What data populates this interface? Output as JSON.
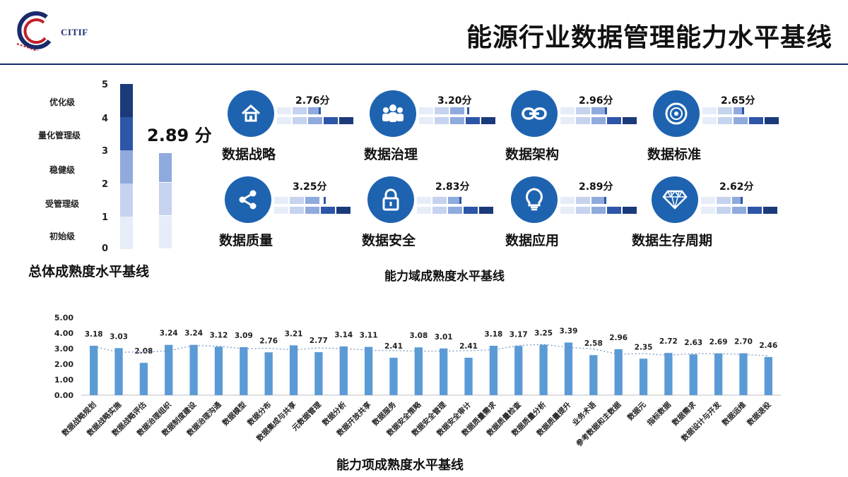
{
  "header": {
    "logo_text": "CITIF",
    "title": "能源行业数据管理能力水平基线"
  },
  "overall": {
    "levels": [
      "优化级",
      "量化管理级",
      "稳健级",
      "受管理级",
      "初始级"
    ],
    "ticks": [
      "5",
      "4",
      "3",
      "2",
      "1",
      "0"
    ],
    "score": 2.89,
    "score_label": "2.89 分",
    "caption": "总体成熟度水平基线"
  },
  "domains": {
    "items": [
      {
        "name": "数据战略",
        "score": 2.76,
        "score_label": "2.76分",
        "icon": "house-icon"
      },
      {
        "name": "数据治理",
        "score": 3.2,
        "score_label": "3.20分",
        "icon": "people-icon"
      },
      {
        "name": "数据架构",
        "score": 2.96,
        "score_label": "2.96分",
        "icon": "link-icon"
      },
      {
        "name": "数据标准",
        "score": 2.65,
        "score_label": "2.65分",
        "icon": "disc-icon"
      },
      {
        "name": "数据质量",
        "score": 3.25,
        "score_label": "3.25分",
        "icon": "share-icon"
      },
      {
        "name": "数据安全",
        "score": 2.83,
        "score_label": "2.83分",
        "icon": "lock-icon"
      },
      {
        "name": "数据应用",
        "score": 2.89,
        "score_label": "2.89分",
        "icon": "lightbulb-icon"
      },
      {
        "name": "数据生存周期",
        "score": 2.62,
        "score_label": "2.62分",
        "icon": "diamond-icon"
      }
    ],
    "caption": "能力域成熟度水平基线"
  },
  "chart_data": {
    "type": "bar",
    "categories": [
      "数据战略规划",
      "数据战略实施",
      "数据战略评估",
      "数据治理组织",
      "数据制度建设",
      "数据治理沟通",
      "数据模型",
      "数据分布",
      "数据集成与共享",
      "元数据管理",
      "数据分析",
      "数据开放共享",
      "数据服务",
      "数据安全策略",
      "数据安全管理",
      "数据安全审计",
      "数据质量需求",
      "数据质量检查",
      "数据质量分析",
      "数据质量提升",
      "业务术语",
      "参考数据和主数据",
      "数据元",
      "指标数据",
      "数据需求",
      "数据设计与开发",
      "数据运维",
      "数据退役"
    ],
    "values": [
      3.18,
      3.03,
      2.08,
      3.24,
      3.24,
      3.12,
      3.09,
      2.76,
      3.21,
      2.77,
      3.14,
      3.11,
      2.41,
      3.08,
      3.01,
      2.41,
      3.18,
      3.17,
      3.25,
      3.39,
      2.58,
      2.96,
      2.35,
      2.72,
      2.63,
      2.69,
      2.7,
      2.46
    ],
    "value_labels": [
      "3.18",
      "3.03",
      "2.08",
      "3.24",
      "3.24",
      "3.12",
      "3.09",
      "2.76",
      "3.21",
      "2.77",
      "3.14",
      "3.11",
      "2.41",
      "3.08",
      "3.01",
      "2.41",
      "3.18",
      "3.17",
      "3.25",
      "3.39",
      "2.58",
      "2.96",
      "2.35",
      "2.72",
      "2.63",
      "2.69",
      "2.70",
      "2.46"
    ],
    "ylim": [
      0,
      5
    ],
    "yticks": [
      "0.00",
      "1.00",
      "2.00",
      "3.00",
      "4.00",
      "5.00"
    ],
    "trendline": "dotted",
    "bar_color": "#5b9bd5",
    "caption": "能力项成熟度水平基线"
  }
}
